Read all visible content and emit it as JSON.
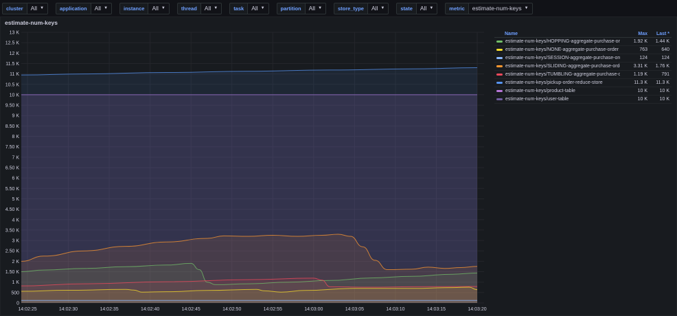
{
  "variables": [
    {
      "label": "cluster",
      "value": "All"
    },
    {
      "label": "application",
      "value": "All"
    },
    {
      "label": "instance",
      "value": "All"
    },
    {
      "label": "thread",
      "value": "All"
    },
    {
      "label": "task",
      "value": "All"
    },
    {
      "label": "partition",
      "value": "All"
    },
    {
      "label": "store_type",
      "value": "All"
    },
    {
      "label": "state",
      "value": "All"
    },
    {
      "label": "metric",
      "value": "estimate-num-keys"
    }
  ],
  "panel": {
    "title": "estimate-num-keys"
  },
  "legend": {
    "headers": {
      "name": "Name",
      "max": "Max",
      "last": "Last *"
    },
    "rows": [
      {
        "name": "estimate-num-keys/HOPPING-aggregate-purchase-order",
        "max": "1.92 K",
        "last": "1.44 K",
        "color": "#73bf69"
      },
      {
        "name": "estimate-num-keys/NONE-aggregate-purchase-order",
        "max": "763",
        "last": "640",
        "color": "#fade2a"
      },
      {
        "name": "estimate-num-keys/SESSION-aggregate-purchase-order",
        "max": "124",
        "last": "124",
        "color": "#8ab8ff"
      },
      {
        "name": "estimate-num-keys/SLIDING-aggregate-purchase-order",
        "max": "3.31 K",
        "last": "1.76 K",
        "color": "#ff9830"
      },
      {
        "name": "estimate-num-keys/TUMBLING-aggregate-purchase-order",
        "max": "1.19 K",
        "last": "791",
        "color": "#f2495c"
      },
      {
        "name": "estimate-num-keys/pickup-order-reduce-store",
        "max": "11.3 K",
        "last": "11.3 K",
        "color": "#5794f2"
      },
      {
        "name": "estimate-num-keys/product-table",
        "max": "10 K",
        "last": "10 K",
        "color": "#b877d9"
      },
      {
        "name": "estimate-num-keys/user-table",
        "max": "10 K",
        "last": "10 K",
        "color": "#705da0"
      }
    ]
  },
  "chart_data": {
    "type": "area",
    "title": "estimate-num-keys",
    "ylim": [
      0,
      13000
    ],
    "y_ticks": [
      "0",
      "500",
      "1 K",
      "1.50 K",
      "2 K",
      "2.50 K",
      "3 K",
      "3.50 K",
      "4 K",
      "4.50 K",
      "5 K",
      "5.50 K",
      "6 K",
      "6.50 K",
      "7 K",
      "7.50 K",
      "8 K",
      "8.50 K",
      "9 K",
      "9.50 K",
      "10 K",
      "10.5 K",
      "11 K",
      "11.5 K",
      "12 K",
      "12.5 K",
      "13 K"
    ],
    "x_ticks": [
      "14:02:25",
      "14:02:30",
      "14:02:35",
      "14:02:40",
      "14:02:45",
      "14:02:50",
      "14:02:55",
      "14:03:00",
      "14:03:05",
      "14:03:10",
      "14:03:15",
      "14:03:20"
    ],
    "x_range_seconds": [
      0,
      58
    ],
    "series": [
      {
        "name": "estimate-num-keys/pickup-order-reduce-store",
        "color": "#5794f2",
        "points": [
          [
            0,
            10950
          ],
          [
            10,
            11000
          ],
          [
            20,
            11070
          ],
          [
            30,
            11130
          ],
          [
            40,
            11190
          ],
          [
            50,
            11240
          ],
          [
            58,
            11300
          ]
        ]
      },
      {
        "name": "estimate-num-keys/product-table",
        "color": "#b877d9",
        "points": [
          [
            0,
            10000
          ],
          [
            58,
            10000
          ]
        ]
      },
      {
        "name": "estimate-num-keys/user-table",
        "color": "#705da0",
        "points": [
          [
            0,
            10000
          ],
          [
            58,
            10000
          ]
        ]
      },
      {
        "name": "estimate-num-keys/SLIDING-aggregate-purchase-order",
        "color": "#ff9830",
        "points": [
          [
            0,
            2000
          ],
          [
            5,
            2250
          ],
          [
            10,
            2500
          ],
          [
            15,
            2720
          ],
          [
            20,
            2930
          ],
          [
            25,
            3100
          ],
          [
            27,
            3220
          ],
          [
            30,
            3200
          ],
          [
            33,
            3250
          ],
          [
            36,
            3200
          ],
          [
            39,
            3250
          ],
          [
            41,
            3300
          ],
          [
            42.5,
            3200
          ],
          [
            44,
            2700
          ],
          [
            45.5,
            2050
          ],
          [
            47,
            1600
          ],
          [
            50,
            1620
          ],
          [
            52,
            1720
          ],
          [
            54,
            1660
          ],
          [
            56,
            1700
          ],
          [
            58,
            1760
          ]
        ]
      },
      {
        "name": "estimate-num-keys/HOPPING-aggregate-purchase-order",
        "color": "#73bf69",
        "points": [
          [
            0,
            1500
          ],
          [
            5,
            1580
          ],
          [
            10,
            1660
          ],
          [
            15,
            1740
          ],
          [
            20,
            1820
          ],
          [
            23,
            1900
          ],
          [
            24,
            1600
          ],
          [
            25,
            1000
          ],
          [
            26,
            880
          ],
          [
            30,
            920
          ],
          [
            35,
            1000
          ],
          [
            40,
            1080
          ],
          [
            45,
            1200
          ],
          [
            50,
            1280
          ],
          [
            55,
            1380
          ],
          [
            58,
            1440
          ]
        ]
      },
      {
        "name": "estimate-num-keys/TUMBLING-aggregate-purchase-order",
        "color": "#f2495c",
        "points": [
          [
            0,
            820
          ],
          [
            10,
            920
          ],
          [
            20,
            1020
          ],
          [
            30,
            1120
          ],
          [
            38,
            1190
          ],
          [
            39,
            1100
          ],
          [
            40,
            780
          ],
          [
            45,
            760
          ],
          [
            50,
            780
          ],
          [
            58,
            791
          ]
        ]
      },
      {
        "name": "estimate-num-keys/NONE-aggregate-purchase-order",
        "color": "#fade2a",
        "points": [
          [
            0,
            560
          ],
          [
            8,
            610
          ],
          [
            15,
            650
          ],
          [
            16,
            620
          ],
          [
            17,
            520
          ],
          [
            20,
            540
          ],
          [
            25,
            600
          ],
          [
            31,
            650
          ],
          [
            32,
            580
          ],
          [
            34,
            520
          ],
          [
            37,
            600
          ],
          [
            43,
            700
          ],
          [
            47,
            700
          ],
          [
            50,
            700
          ],
          [
            55,
            740
          ],
          [
            57,
            760
          ],
          [
            58,
            640
          ]
        ]
      },
      {
        "name": "estimate-num-keys/SESSION-aggregate-purchase-order",
        "color": "#8ab8ff",
        "points": [
          [
            0,
            124
          ],
          [
            58,
            124
          ]
        ]
      }
    ]
  }
}
